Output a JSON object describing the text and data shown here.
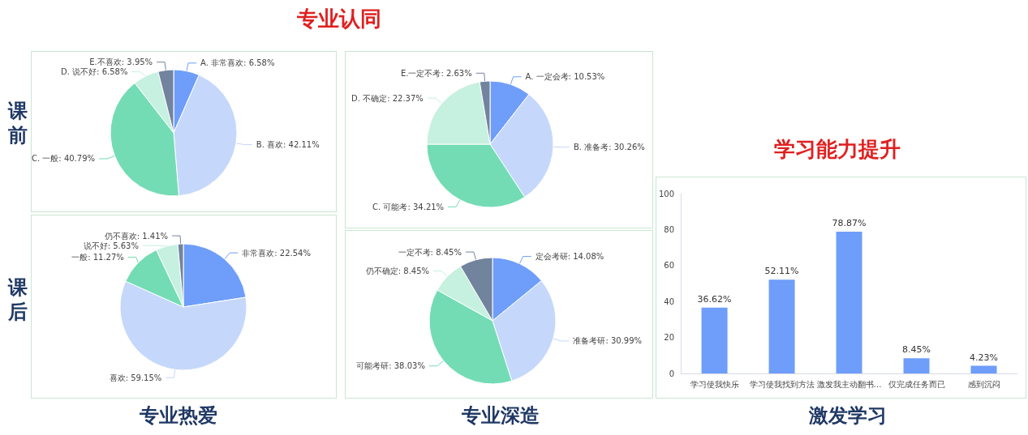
{
  "chart_data": [
    {
      "type": "other",
      "annotations": [
        "专业认同",
        "课前",
        "课后",
        "专业热爱",
        "专业深造"
      ]
    },
    {
      "type": "pie",
      "categories": [
        "A. 非常喜欢",
        "B. 喜欢",
        "C. 一般",
        "D. 说不好",
        "E.不喜欢"
      ],
      "values": [
        6.58,
        42.11,
        40.79,
        6.58,
        3.95
      ],
      "value_labels": [
        "6.58%",
        "42.11%",
        "40.79%",
        "6.58%",
        "3.95%"
      ],
      "colors": [
        "#6e9ef9",
        "#c5d8fb",
        "#73dcb4",
        "#c6f0df",
        "#72839e"
      ]
    },
    {
      "type": "pie",
      "categories": [
        "非常喜欢",
        "喜欢",
        "一般",
        "说不好",
        "仍不喜欢"
      ],
      "values": [
        22.54,
        59.15,
        11.27,
        5.63,
        1.41
      ],
      "value_labels": [
        "22.54%",
        "59.15%",
        "11.27%",
        "5.63%",
        "1.41%"
      ],
      "colors": [
        "#6e9ef9",
        "#c5d8fb",
        "#73dcb4",
        "#c6f0df",
        "#72839e"
      ]
    },
    {
      "type": "pie",
      "categories": [
        "A. 一定会考",
        "B. 准备考",
        "C. 可能考",
        "D. 不确定",
        "E.一定不考"
      ],
      "values": [
        10.53,
        30.26,
        34.21,
        22.37,
        2.63
      ],
      "value_labels": [
        "10.53%",
        "30.26%",
        "34.21%",
        "22.37%",
        "2.63%"
      ],
      "colors": [
        "#6e9ef9",
        "#c5d8fb",
        "#73dcb4",
        "#c6f0df",
        "#72839e"
      ]
    },
    {
      "type": "pie",
      "categories": [
        "定会考研",
        "准备考研",
        "可能考研",
        "仍不确定",
        "一定不考"
      ],
      "values": [
        14.08,
        30.99,
        38.03,
        8.45,
        8.45
      ],
      "value_labels": [
        "14.08%",
        "30.99%",
        "38.03%",
        "8.45%",
        "8.45%"
      ],
      "colors": [
        "#6e9ef9",
        "#c5d8fb",
        "#73dcb4",
        "#c6f0df",
        "#72839e"
      ]
    },
    {
      "type": "bar",
      "title": "学习能力提升",
      "xlabel": "激发学习",
      "categories": [
        "学习使我快乐",
        "学习使我找到方法",
        "激发我主动翻书…",
        "仅完成任务而已",
        "感到沉闷"
      ],
      "values": [
        36.62,
        52.11,
        78.87,
        8.45,
        4.23
      ],
      "value_labels": [
        "36.62%",
        "52.11%",
        "78.87%",
        "8.45%",
        "4.23%"
      ],
      "color": "#6e9ef9",
      "ylim": [
        0,
        100
      ],
      "yticks": [
        0,
        20,
        40,
        60,
        80,
        100
      ],
      "grid": false
    }
  ]
}
